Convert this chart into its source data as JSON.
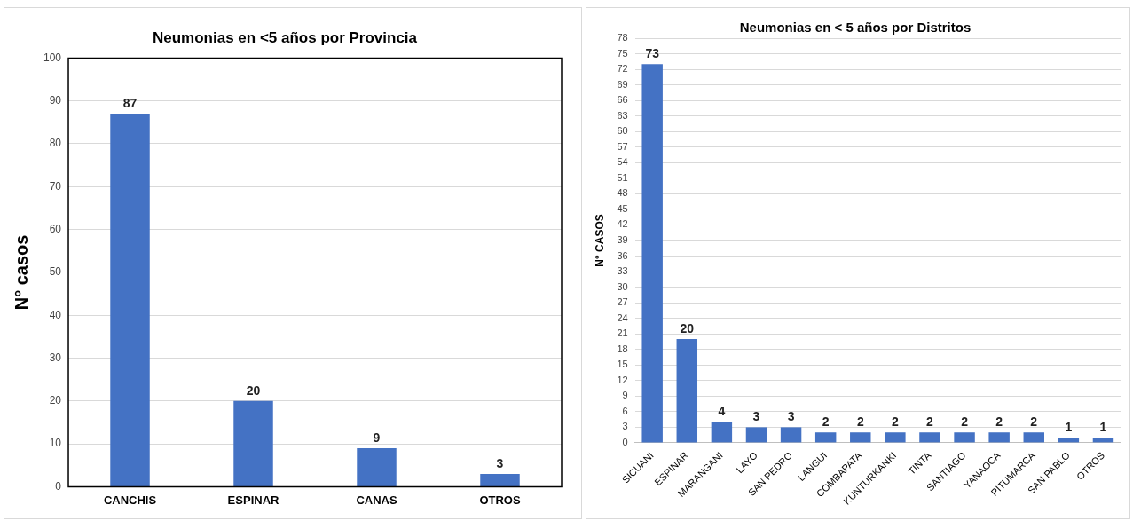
{
  "chart_data": [
    {
      "type": "bar",
      "title": "Neumonias en <5 años por Provincia",
      "ylabel": "N° casos",
      "categories": [
        "CANCHIS",
        "ESPINAR",
        "CANAS",
        "OTROS"
      ],
      "values": [
        87,
        20,
        9,
        3
      ],
      "color": "#4472c4",
      "ylim": [
        0,
        100
      ],
      "yticks": [
        0,
        10,
        20,
        30,
        40,
        50,
        60,
        70,
        80,
        90,
        100
      ],
      "grid": "y",
      "data_labels": true
    },
    {
      "type": "bar",
      "title": "Neumonias en < 5 años por Distritos",
      "ylabel": "N° CASOS",
      "categories": [
        "SICUANI",
        "ESPINAR",
        "MARANGANI",
        "LAYO",
        "SAN PEDRO",
        "LANGUI",
        "COMBAPATA",
        "KUNTURKANKI",
        "TINTA",
        "SANTIAGO",
        "YANAOCA",
        "PITUMARCA",
        "SAN PABLO",
        "OTROS"
      ],
      "values": [
        73,
        20,
        4,
        3,
        3,
        2,
        2,
        2,
        2,
        2,
        2,
        2,
        1,
        1
      ],
      "color": "#4472c4",
      "ylim": [
        0,
        78
      ],
      "yticks": [
        0,
        3,
        6,
        9,
        12,
        15,
        18,
        21,
        24,
        27,
        30,
        33,
        36,
        39,
        42,
        45,
        48,
        51,
        54,
        57,
        60,
        63,
        66,
        69,
        72,
        75,
        78
      ],
      "grid": "y",
      "data_labels": true
    }
  ]
}
